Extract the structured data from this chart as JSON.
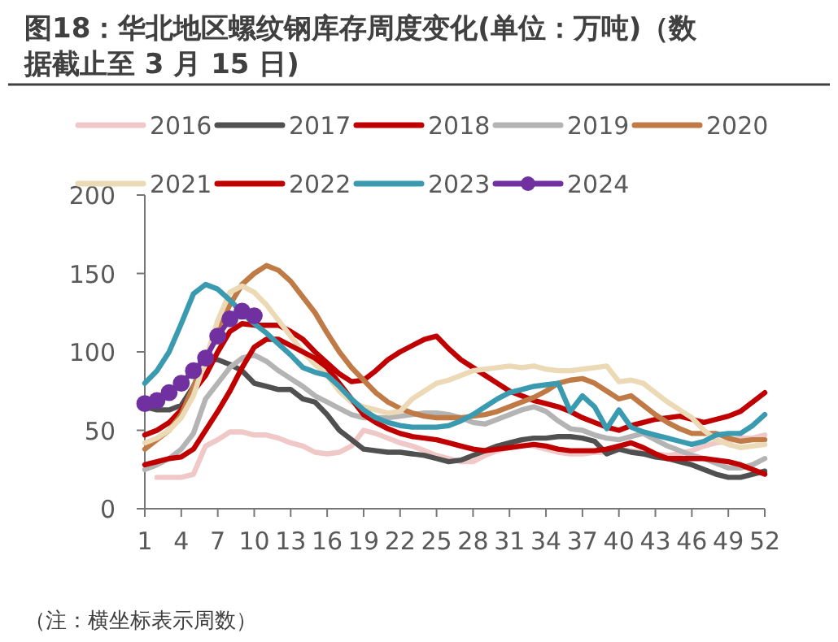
{
  "chart_data": {
    "type": "line",
    "title": "图18：华北地区螺纹钢库存周度变化(单位：万吨)（数据截止至 3 月 15 日)",
    "annotations": [
      "（注：横坐标表示周数）"
    ],
    "x": [
      1,
      2,
      3,
      4,
      5,
      6,
      7,
      8,
      9,
      10,
      11,
      12,
      13,
      14,
      15,
      16,
      17,
      18,
      19,
      20,
      21,
      22,
      23,
      24,
      25,
      26,
      27,
      28,
      29,
      30,
      31,
      32,
      33,
      34,
      35,
      36,
      37,
      38,
      39,
      40,
      41,
      42,
      43,
      44,
      45,
      46,
      47,
      48,
      49,
      50,
      51,
      52
    ],
    "xlim": [
      1,
      52
    ],
    "xticks": [
      1,
      4,
      7,
      10,
      13,
      16,
      19,
      22,
      25,
      28,
      31,
      34,
      37,
      40,
      43,
      46,
      49,
      52
    ],
    "ylim": [
      0,
      200
    ],
    "yticks": [
      0,
      50,
      100,
      150,
      200
    ],
    "legend": "top",
    "grid": false,
    "line_style": "solid",
    "series": [
      {
        "name": "2016",
        "color": "#f0c8c8",
        "values": [
          null,
          20,
          20,
          20,
          22,
          40,
          44,
          49,
          49,
          47,
          47,
          45,
          42,
          40,
          36,
          35,
          36,
          40,
          50,
          48,
          45,
          42,
          40,
          37,
          34,
          32,
          30,
          30,
          34,
          37,
          39,
          41,
          40,
          38,
          36,
          35,
          35,
          36,
          36,
          38,
          37,
          36,
          35,
          34,
          35,
          37,
          40,
          42,
          43,
          45,
          45,
          47
        ]
      },
      {
        "name": "2017",
        "color": "#505050",
        "values": [
          65,
          63,
          63,
          66,
          78,
          95,
          95,
          92,
          88,
          80,
          78,
          76,
          76,
          70,
          68,
          60,
          50,
          44,
          38,
          37,
          36,
          36,
          35,
          34,
          32,
          30,
          31,
          34,
          37,
          40,
          42,
          44,
          45,
          45,
          46,
          46,
          45,
          43,
          35,
          38,
          36,
          35,
          33,
          32,
          30,
          28,
          25,
          22,
          20,
          20,
          22,
          24
        ]
      },
      {
        "name": "2018",
        "color": "#c00000",
        "values": [
          47,
          50,
          55,
          63,
          75,
          85,
          100,
          113,
          118,
          117,
          117,
          117,
          113,
          108,
          100,
          93,
          86,
          81,
          82,
          88,
          95,
          100,
          104,
          108,
          110,
          102,
          95,
          90,
          85,
          80,
          75,
          72,
          69,
          67,
          65,
          62,
          58,
          55,
          52,
          50,
          53,
          55,
          57,
          58,
          59,
          57,
          55,
          57,
          59,
          62,
          68,
          74
        ]
      },
      {
        "name": "2019",
        "color": "#b4b4b4",
        "values": [
          25,
          28,
          32,
          38,
          48,
          70,
          80,
          90,
          96,
          98,
          94,
          88,
          83,
          78,
          72,
          68,
          64,
          60,
          58,
          58,
          58,
          59,
          60,
          61,
          61,
          60,
          58,
          55,
          54,
          57,
          60,
          63,
          65,
          62,
          56,
          51,
          50,
          47,
          45,
          44,
          46,
          48,
          44,
          40,
          37,
          34,
          32,
          29,
          26,
          26,
          28,
          32
        ]
      },
      {
        "name": "2020",
        "color": "#c07a45",
        "values": [
          38,
          44,
          50,
          60,
          78,
          95,
          115,
          130,
          143,
          150,
          155,
          152,
          145,
          135,
          125,
          112,
          100,
          90,
          82,
          74,
          68,
          64,
          61,
          59,
          58,
          58,
          58,
          59,
          60,
          62,
          65,
          68,
          71,
          75,
          80,
          82,
          83,
          80,
          75,
          70,
          72,
          66,
          60,
          55,
          51,
          48,
          48,
          48,
          45,
          43,
          44,
          44
        ]
      },
      {
        "name": "2021",
        "color": "#ecd9b5",
        "values": [
          42,
          45,
          50,
          58,
          72,
          95,
          120,
          138,
          142,
          138,
          130,
          120,
          110,
          100,
          92,
          85,
          75,
          68,
          65,
          63,
          61,
          62,
          70,
          75,
          80,
          82,
          85,
          88,
          89,
          90,
          91,
          90,
          91,
          89,
          88,
          88,
          89,
          90,
          91,
          81,
          82,
          80,
          74,
          68,
          63,
          58,
          50,
          44,
          41,
          39,
          40,
          41
        ]
      },
      {
        "name": "2022",
        "color": "#c00000",
        "values": [
          28,
          30,
          32,
          33,
          38,
          50,
          62,
          75,
          90,
          103,
          108,
          108,
          104,
          100,
          96,
          90,
          80,
          70,
          60,
          55,
          51,
          48,
          46,
          45,
          44,
          42,
          40,
          38,
          37,
          38,
          39,
          40,
          41,
          40,
          38,
          37,
          37,
          37,
          38,
          40,
          42,
          39,
          35,
          32,
          32,
          32,
          32,
          31,
          30,
          28,
          25,
          22
        ]
      },
      {
        "name": "2023",
        "color": "#3a9ab0",
        "values": [
          80,
          88,
          100,
          118,
          137,
          143,
          140,
          133,
          125,
          118,
          112,
          105,
          98,
          90,
          87,
          85,
          78,
          70,
          63,
          58,
          55,
          53,
          52,
          52,
          52,
          53,
          56,
          60,
          65,
          70,
          74,
          76,
          78,
          79,
          80,
          62,
          72,
          65,
          51,
          63,
          52,
          49,
          47,
          45,
          43,
          41,
          43,
          47,
          48,
          48,
          53,
          60
        ]
      },
      {
        "name": "2024",
        "color": "#7030a0",
        "marker": "circle",
        "x": [
          1,
          2,
          3,
          4,
          5,
          6,
          7,
          8,
          9,
          10
        ],
        "values": [
          67,
          69,
          74,
          80,
          88,
          96,
          110,
          121,
          126,
          123
        ]
      }
    ]
  }
}
